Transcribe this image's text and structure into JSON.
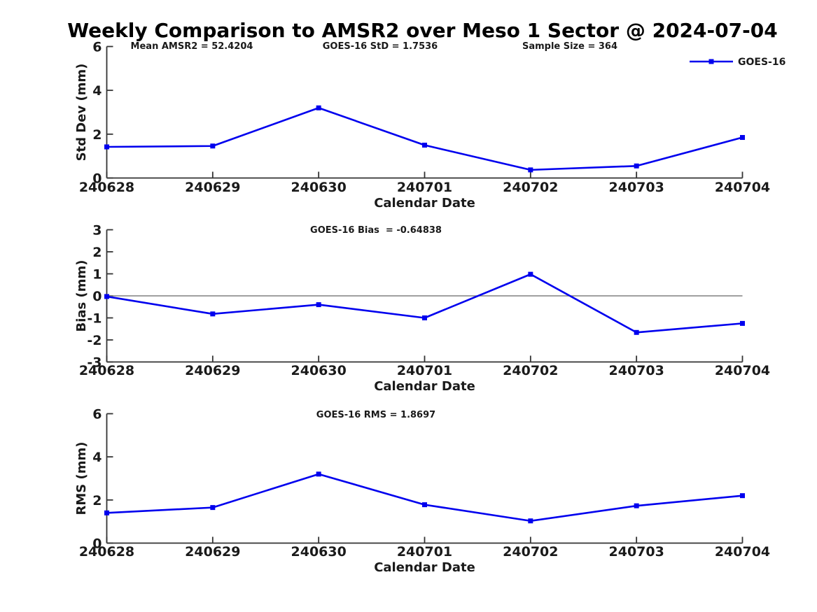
{
  "title": "Weekly Comparison to AMSR2 over Meso 1 Sector @ 2024-07-04",
  "colors": {
    "series": "#0000EE",
    "axis": "#333333",
    "text": "#1a1a1a",
    "zero_line": "#808080",
    "background": "#ffffff"
  },
  "legend": {
    "label": "GOES-16"
  },
  "chart_data": [
    {
      "id": "std-dev",
      "type": "line",
      "annotations": [
        "Mean AMSR2 = 52.4204",
        "GOES-16 StD = 1.7536",
        "Sample Size = 364"
      ],
      "categories": [
        "240628",
        "240629",
        "240630",
        "240701",
        "240702",
        "240703",
        "240704"
      ],
      "series": [
        {
          "name": "GOES-16",
          "values": [
            1.42,
            1.46,
            3.2,
            1.5,
            0.37,
            0.55,
            1.85
          ]
        }
      ],
      "xlabel": "Calendar Date",
      "ylabel": "Std Dev (mm)",
      "ylim": [
        0,
        6
      ],
      "yticks": [
        0,
        2,
        4,
        6
      ],
      "grid": false,
      "legend": true,
      "legend_position": "top-right",
      "zero_line": false
    },
    {
      "id": "bias",
      "type": "line",
      "annotations": [
        "GOES-16 Bias  = -0.64838"
      ],
      "categories": [
        "240628",
        "240629",
        "240630",
        "240701",
        "240702",
        "240703",
        "240704"
      ],
      "series": [
        {
          "name": "GOES-16",
          "values": [
            -0.03,
            -0.82,
            -0.4,
            -1.0,
            0.98,
            -1.66,
            -1.25
          ]
        }
      ],
      "xlabel": "Calendar Date",
      "ylabel": "Bias (mm)",
      "ylim": [
        -3,
        3
      ],
      "yticks": [
        -3,
        -2,
        -1,
        0,
        1,
        2,
        3
      ],
      "grid": false,
      "legend": false,
      "zero_line": true
    },
    {
      "id": "rms",
      "type": "line",
      "annotations": [
        "GOES-16 RMS = 1.8697"
      ],
      "categories": [
        "240628",
        "240629",
        "240630",
        "240701",
        "240702",
        "240703",
        "240704"
      ],
      "series": [
        {
          "name": "GOES-16",
          "values": [
            1.4,
            1.65,
            3.2,
            1.78,
            1.03,
            1.73,
            2.2
          ]
        }
      ],
      "xlabel": "Calendar Date",
      "ylabel": "RMS (mm)",
      "ylim": [
        0,
        6
      ],
      "yticks": [
        0,
        2,
        4,
        6
      ],
      "grid": false,
      "legend": false,
      "zero_line": false
    }
  ]
}
